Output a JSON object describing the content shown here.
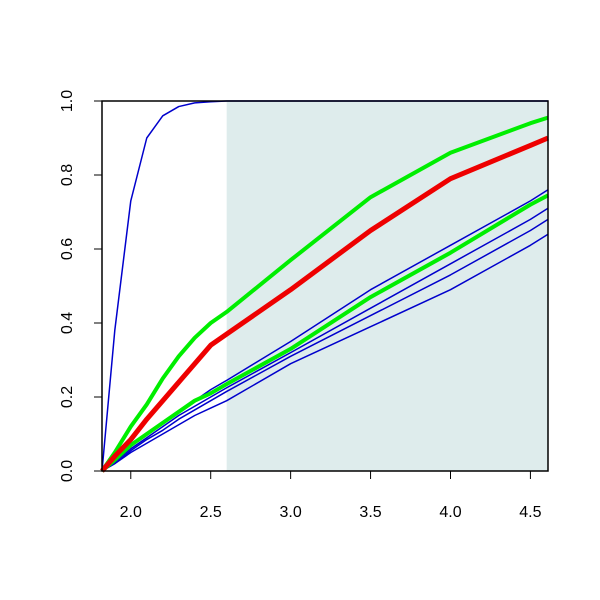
{
  "chart_data": {
    "type": "line",
    "x": [
      1.82,
      1.9,
      2.0,
      2.1,
      2.2,
      2.3,
      2.4,
      2.5,
      2.6,
      3.0,
      3.5,
      4.0,
      4.5,
      4.61
    ],
    "series": [
      {
        "color": "#0000cc",
        "width": 1.5,
        "values": [
          0,
          0.38,
          0.73,
          0.9,
          0.96,
          0.985,
          0.995,
          0.998,
          1,
          1,
          1,
          1,
          1,
          1
        ]
      },
      {
        "color": "#0000cc",
        "width": 1.5,
        "values": [
          0,
          0.02,
          0.05,
          0.075,
          0.1,
          0.125,
          0.15,
          0.17,
          0.19,
          0.29,
          0.39,
          0.49,
          0.61,
          0.64
        ]
      },
      {
        "color": "#0000cc",
        "width": 1.5,
        "values": [
          0,
          0.02,
          0.055,
          0.085,
          0.11,
          0.14,
          0.165,
          0.19,
          0.215,
          0.31,
          0.42,
          0.53,
          0.65,
          0.68
        ]
      },
      {
        "color": "#0000cc",
        "width": 1.5,
        "values": [
          0,
          0.025,
          0.06,
          0.09,
          0.12,
          0.15,
          0.175,
          0.2,
          0.225,
          0.32,
          0.44,
          0.56,
          0.68,
          0.71
        ]
      },
      {
        "color": "#0000cc",
        "width": 1.5,
        "values": [
          0,
          0.03,
          0.07,
          0.1,
          0.13,
          0.16,
          0.19,
          0.22,
          0.245,
          0.35,
          0.49,
          0.61,
          0.73,
          0.76
        ]
      },
      {
        "color": "#00ee00",
        "width": 4,
        "values": [
          0,
          0.03,
          0.07,
          0.1,
          0.13,
          0.16,
          0.19,
          0.21,
          0.235,
          0.33,
          0.47,
          0.59,
          0.72,
          0.745
        ]
      },
      {
        "color": "#00ee00",
        "width": 4,
        "values": [
          0,
          0.05,
          0.12,
          0.18,
          0.25,
          0.31,
          0.36,
          0.4,
          0.43,
          0.57,
          0.74,
          0.86,
          0.94,
          0.955
        ]
      },
      {
        "color": "#ee0000",
        "width": 5,
        "values": [
          0,
          0.04,
          0.085,
          0.14,
          0.19,
          0.24,
          0.29,
          0.34,
          0.37,
          0.49,
          0.65,
          0.79,
          0.88,
          0.9
        ]
      }
    ],
    "highlight": {
      "xmin": 2.6,
      "color": "#deecec"
    },
    "xlim": [
      1.82,
      4.61
    ],
    "ylim": [
      0,
      1
    ],
    "xticks": [
      {
        "value": 2,
        "label": "2.0"
      },
      2.5,
      {
        "value": 3,
        "label": "3.0"
      },
      3.5,
      {
        "value": 4,
        "label": "4.0"
      },
      4.5
    ],
    "yticks": [
      {
        "value": 0,
        "label": "0.0"
      },
      0.2,
      0.4,
      0.6,
      0.8,
      {
        "value": 1,
        "label": "1.0"
      }
    ]
  }
}
